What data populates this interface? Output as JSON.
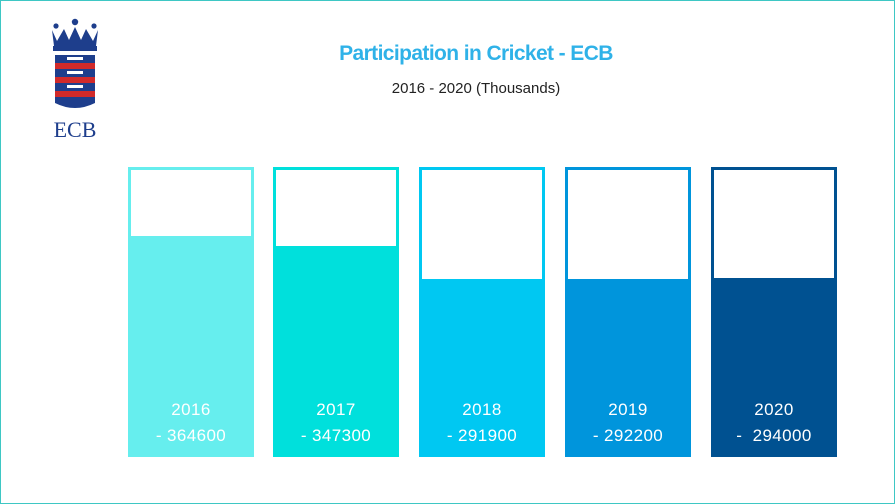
{
  "chart_data": {
    "type": "bar",
    "title": "Participation in Cricket - ECB",
    "subtitle": "2016 - 2020 (Thousands)",
    "categories": [
      "2016",
      "2017",
      "2018",
      "2019",
      "2020"
    ],
    "values": [
      364600,
      347300,
      291900,
      292200,
      294000
    ],
    "value_labels": [
      "- 364600",
      "- 347300",
      "- 291900",
      "- 292200",
      "-  294000"
    ],
    "ylim": [
      0,
      475000
    ],
    "grid": false,
    "legend": "none",
    "colors": [
      "#66eeee",
      "#00e0dc",
      "#00c8f2",
      "#0095dc",
      "#005191"
    ]
  },
  "logo": {
    "icon": "ecb-crown-lions-logo",
    "text": "ECB",
    "color": "#1e3e8c"
  }
}
